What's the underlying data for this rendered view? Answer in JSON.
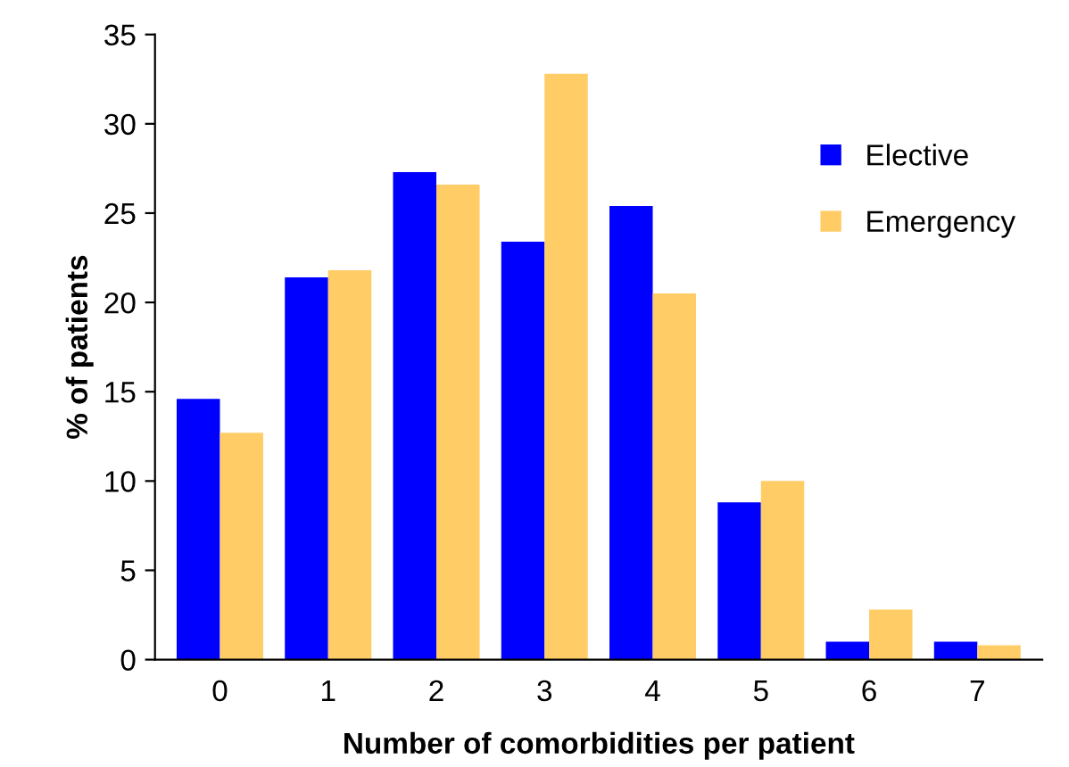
{
  "chart_data": {
    "type": "bar",
    "xlabel": "Number of comorbidities per patient",
    "ylabel": "% of patients",
    "categories": [
      "0",
      "1",
      "2",
      "3",
      "4",
      "5",
      "6",
      "7"
    ],
    "series": [
      {
        "name": "Elective",
        "color": "#0000ff",
        "values": [
          14.6,
          21.4,
          27.3,
          23.4,
          25.4,
          8.8,
          1.0,
          1.0
        ]
      },
      {
        "name": "Emergency",
        "color": "#ffcc66",
        "values": [
          12.7,
          21.8,
          26.6,
          32.8,
          20.5,
          10.0,
          2.8,
          0.8
        ]
      }
    ],
    "ylim": [
      0,
      35
    ],
    "yticks": [
      0,
      5,
      10,
      15,
      20,
      25,
      30,
      35
    ],
    "grid": false,
    "legend": "right"
  }
}
